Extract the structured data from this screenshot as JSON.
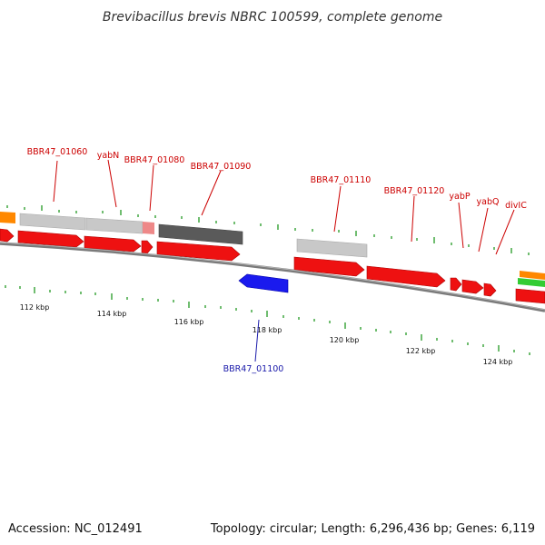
{
  "title": "Brevibacillus brevis NBRC 100599, complete genome",
  "footer": {
    "accession": "Accession: NC_012491",
    "summary": "Topology: circular; Length: 6,296,436 bp; Genes: 6,119"
  },
  "colors": {
    "forward_gene": "#ee1111",
    "reverse_gene": "#1a1aee",
    "forward_label": "#cc0000",
    "reverse_label": "#1a1aaa",
    "backbone": "#888888",
    "tick": "#229922",
    "pseudo_light": "#c8c8c8",
    "pseudo_dark": "#5a5a5a",
    "orange": "#ff8800",
    "green": "#33cc33"
  },
  "kbp_labels": [
    {
      "text": "112 kbp",
      "pos": 112
    },
    {
      "text": "114 kbp",
      "pos": 114
    },
    {
      "text": "116 kbp",
      "pos": 116
    },
    {
      "text": "118 kbp",
      "pos": 118
    },
    {
      "text": "120 kbp",
      "pos": 120
    },
    {
      "text": "122 kbp",
      "pos": 122
    },
    {
      "text": "124 kbp",
      "pos": 124
    }
  ],
  "gene_labels": {
    "bbr47_01060": "BBR47_01060",
    "yabN": "yabN",
    "bbr47_01080": "BBR47_01080",
    "bbr47_01090": "BBR47_01090",
    "bbr47_01110": "BBR47_01110",
    "bbr47_01120": "BBR47_01120",
    "yabP": "yabP",
    "yabQ": "yabQ",
    "divIC": "divIC",
    "bbr47_01100": "BBR47_01100"
  }
}
